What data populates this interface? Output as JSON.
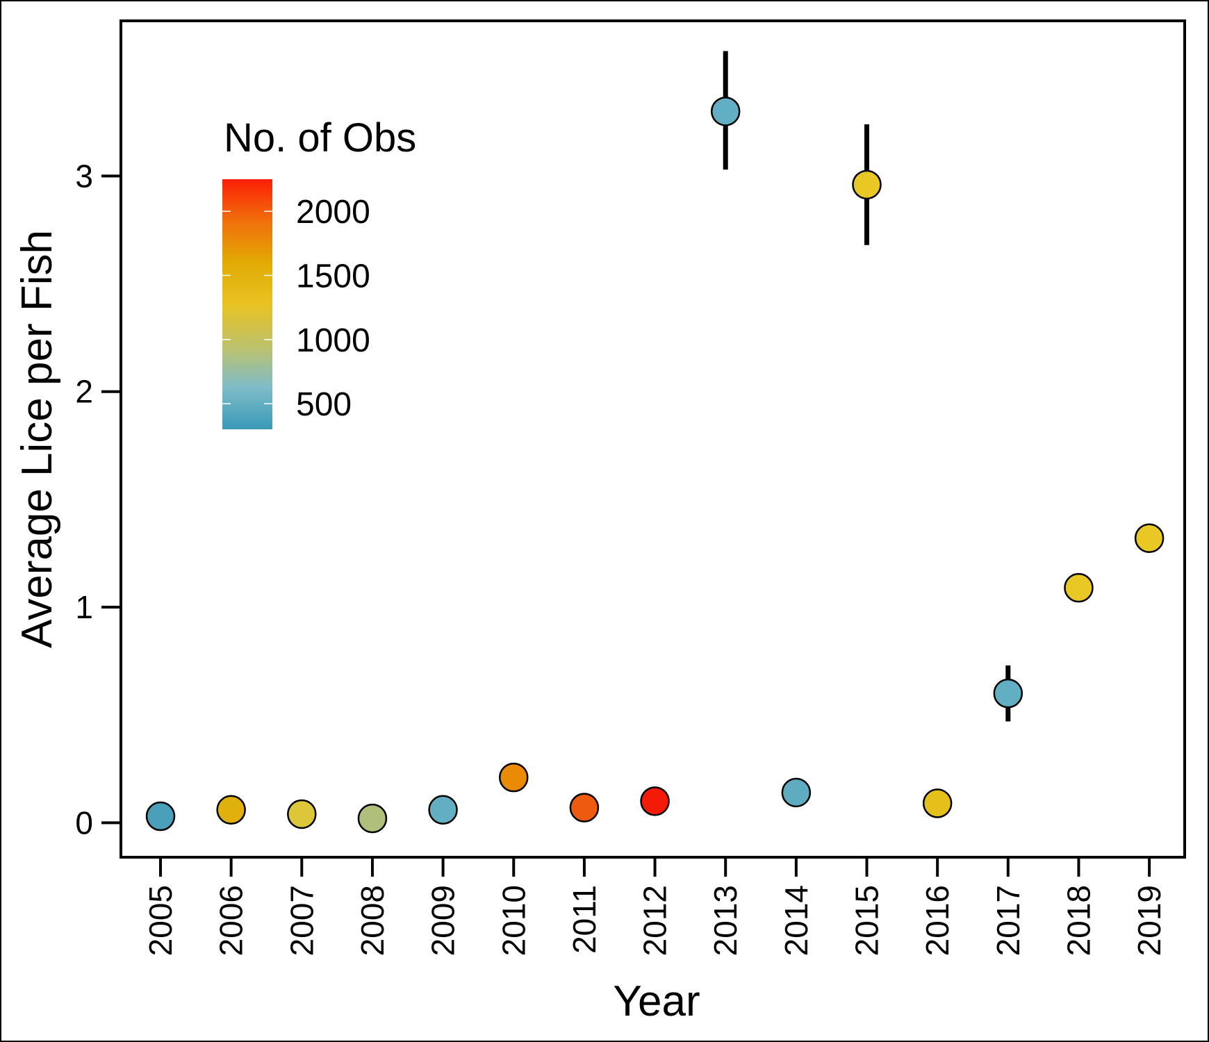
{
  "chart_data": {
    "type": "scatter",
    "title": "",
    "xlabel": "Year",
    "ylabel": "Average Lice per Fish",
    "x_categories": [
      "2005",
      "2006",
      "2007",
      "2008",
      "2009",
      "2010",
      "2011",
      "2012",
      "2013",
      "2014",
      "2015",
      "2016",
      "2017",
      "2018",
      "2019"
    ],
    "ylim": [
      -0.16,
      3.72
    ],
    "yticks": [
      0,
      1,
      2,
      3
    ],
    "grid": false,
    "x_tick_label_rotation": "vertical",
    "points": [
      {
        "x": "2005",
        "y": 0.03,
        "n_obs": 350,
        "color": "#4a9fba"
      },
      {
        "x": "2006",
        "y": 0.06,
        "n_obs": 1600,
        "color": "#e0b10c"
      },
      {
        "x": "2007",
        "y": 0.04,
        "n_obs": 1250,
        "color": "#dcc63a"
      },
      {
        "x": "2008",
        "y": 0.02,
        "n_obs": 1000,
        "color": "#b0c07a"
      },
      {
        "x": "2009",
        "y": 0.06,
        "n_obs": 500,
        "color": "#62aec2"
      },
      {
        "x": "2010",
        "y": 0.21,
        "n_obs": 1850,
        "color": "#ea8a05"
      },
      {
        "x": "2011",
        "y": 0.07,
        "n_obs": 2050,
        "color": "#ee5a0e"
      },
      {
        "x": "2012",
        "y": 0.1,
        "n_obs": 2200,
        "color": "#f41a08"
      },
      {
        "x": "2013",
        "y": 3.3,
        "n_obs": 500,
        "color": "#62aec2",
        "err_low": 3.03,
        "err_high": 3.58
      },
      {
        "x": "2014",
        "y": 0.14,
        "n_obs": 500,
        "color": "#5fabbf"
      },
      {
        "x": "2015",
        "y": 2.96,
        "n_obs": 1400,
        "color": "#e9c826",
        "err_low": 2.68,
        "err_high": 3.24
      },
      {
        "x": "2016",
        "y": 0.09,
        "n_obs": 1450,
        "color": "#e6c01a"
      },
      {
        "x": "2017",
        "y": 0.6,
        "n_obs": 500,
        "color": "#62aec2",
        "err_low": 0.47,
        "err_high": 0.73
      },
      {
        "x": "2018",
        "y": 1.09,
        "n_obs": 1400,
        "color": "#e9c826"
      },
      {
        "x": "2019",
        "y": 1.32,
        "n_obs": 1400,
        "color": "#e9c826"
      }
    ],
    "legend": {
      "title": "No. of Obs",
      "placement": "top-left",
      "type": "colorbar",
      "range": [
        300,
        2250
      ],
      "ticks": [
        500,
        1000,
        1500,
        2000
      ],
      "tick_labels": [
        "500",
        "1000",
        "1500",
        "2000"
      ],
      "gradient_colors": [
        "#3a9ab8",
        "#7fbcc8",
        "#bfc26a",
        "#e8c222",
        "#e1aa04",
        "#f16f0c",
        "#fb1e05"
      ]
    }
  }
}
